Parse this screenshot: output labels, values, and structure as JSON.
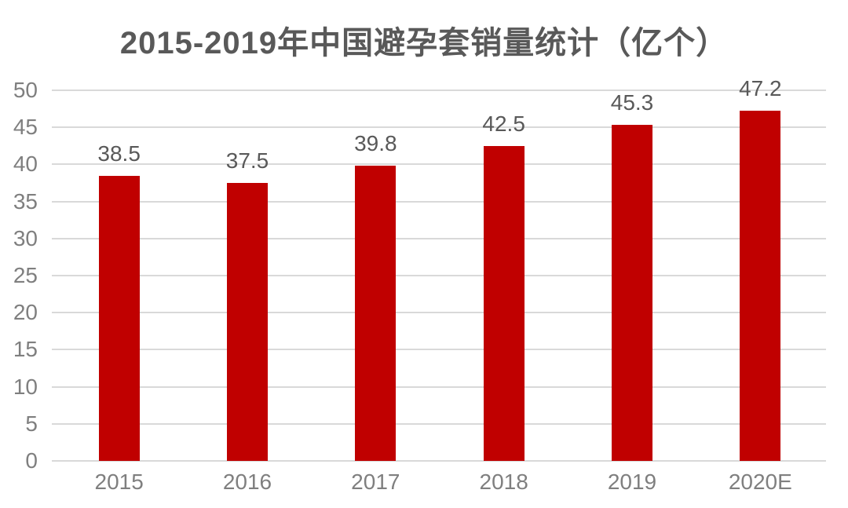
{
  "title": "2015-2019年中国避孕套销量统计（亿个）",
  "colors": {
    "bar": "#c00000",
    "gridline": "#d9d9d9",
    "axis_label": "#7f7f7f",
    "data_label": "#595959",
    "title": "#595959",
    "background": "#ffffff"
  },
  "chart_data": {
    "type": "bar",
    "title": "2015-2019年中国避孕套销量统计（亿个）",
    "categories": [
      "2015",
      "2016",
      "2017",
      "2018",
      "2019",
      "2020E"
    ],
    "values": [
      38.5,
      37.5,
      39.8,
      42.5,
      45.3,
      47.2
    ],
    "data_labels": [
      "38.5",
      "37.5",
      "39.8",
      "42.5",
      "45.3",
      "47.2"
    ],
    "xlabel": "",
    "ylabel": "",
    "ylim": [
      0,
      50
    ],
    "ytick_step": 5,
    "yticks": [
      0,
      5,
      10,
      15,
      20,
      25,
      30,
      35,
      40,
      45,
      50
    ],
    "grid": true,
    "legend_position": "none"
  }
}
